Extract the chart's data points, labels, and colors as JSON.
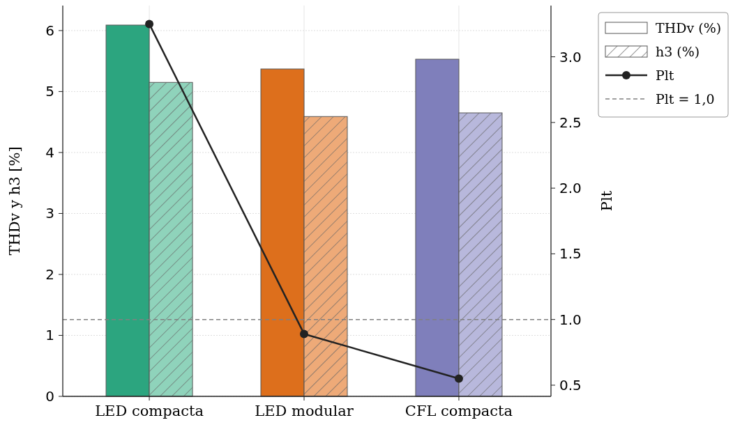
{
  "chart_data": {
    "type": "bar",
    "categories": [
      "LED compacta",
      "LED modular",
      "CFL compacta"
    ],
    "ylabel": "THDv y h3 [%]",
    "y2label": "Plt",
    "series": [
      {
        "name": "THDv (%)",
        "color": "#ffffff",
        "colors": [
          "#2ca57f",
          "#dd6f1c",
          "#7f7fbb"
        ],
        "values": [
          6.09,
          5.37,
          5.53
        ]
      },
      {
        "name": "h3 (%)",
        "color": "#ffffff",
        "colors": [
          "#8fd3bb",
          "#eeaa78",
          "#b8b8dc"
        ],
        "values": [
          5.15,
          4.59,
          4.65
        ]
      },
      {
        "name": "Plt",
        "type": "line",
        "axis": "y2",
        "color": "#222222",
        "marker": "circle",
        "values": [
          3.25,
          0.89,
          0.55
        ]
      }
    ],
    "ylim": [
      0,
      6.41
    ],
    "yticks": [
      0,
      1,
      2,
      3,
      4,
      5,
      6
    ],
    "y2lim": [
      0.415,
      3.39
    ],
    "y2ticks": [
      {
        "value": 0.5,
        "label": "0.5"
      },
      {
        "value": 1,
        "label": "1.0"
      },
      {
        "value": 1.5,
        "label": "1.5"
      },
      {
        "value": 2,
        "label": "2.0"
      },
      {
        "value": 2.5,
        "label": "2.5"
      },
      {
        "value": 3,
        "label": "3.0"
      }
    ],
    "ref_lines": [
      {
        "axis": "y2",
        "value": 1.0,
        "label": "Plt = 1,0",
        "color": "#808080",
        "line_style": "dashed"
      }
    ],
    "grid": true,
    "legend": "top right"
  }
}
